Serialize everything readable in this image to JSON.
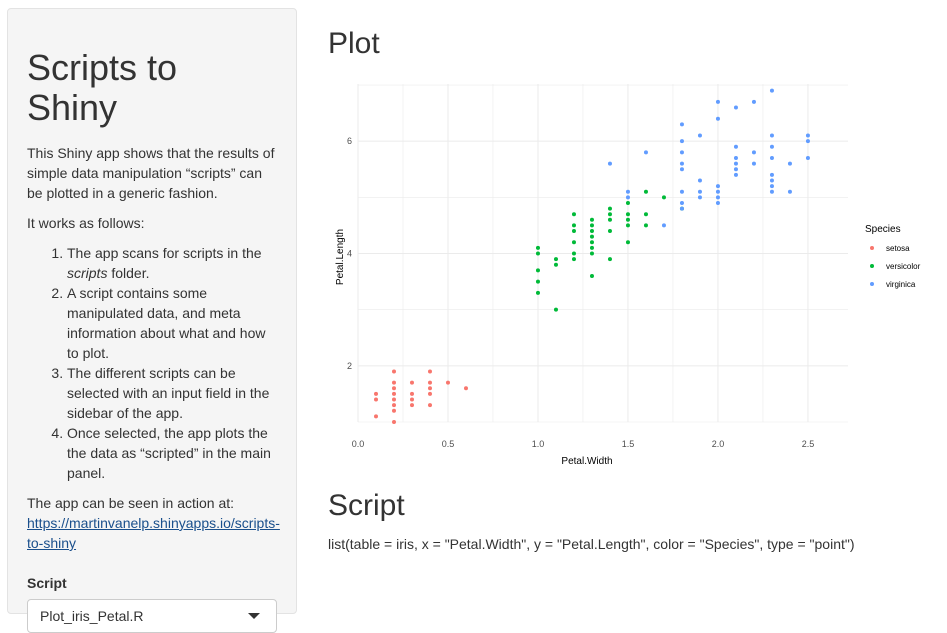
{
  "sidebar": {
    "title": "Scripts to Shiny",
    "intro": "This Shiny app shows that the results of simple data manipulation “scripts” can be plotted in a generic fashion.",
    "works_as_follows": "It works as follows:",
    "steps": [
      {
        "pre": "The app scans for scripts in the ",
        "em": "scripts",
        "post": " folder."
      },
      {
        "pre": "A script contains some manipulated data, and meta information about what and how to plot.",
        "em": "",
        "post": ""
      },
      {
        "pre": "The different scripts can be selected with an input field in the sidebar of the app.",
        "em": "",
        "post": ""
      },
      {
        "pre": "Once selected, the app plots the the data as “scripted” in the main panel.",
        "em": "",
        "post": ""
      }
    ],
    "action_text": "The app can be seen in action at:",
    "link_text": "https://martinvanelp.shinyapps.io/scripts-to-shiny",
    "script_label": "Script",
    "script_selected": "Plot_iris_Petal.R"
  },
  "main": {
    "plot_heading": "Plot",
    "script_heading": "Script",
    "script_text": "list(table = iris, x = \"Petal.Width\", y = \"Petal.Length\", color = \"Species\", type = \"point\")"
  },
  "colors": {
    "setosa": "#F8766D",
    "versicolor": "#00BA38",
    "virginica": "#619CFF",
    "grid": "#ebebeb"
  },
  "chart_data": {
    "type": "scatter",
    "xlabel": "Petal.Width",
    "ylabel": "Petal.Length",
    "xlim": [
      0.0,
      2.6
    ],
    "ylim": [
      1.0,
      7.0
    ],
    "x_ticks": [
      "0.0",
      "0.5",
      "1.0",
      "1.5",
      "2.0",
      "2.5"
    ],
    "y_ticks": [
      "2",
      "4",
      "6"
    ],
    "grid": true,
    "legend_title": "Species",
    "legend_position": "right",
    "series": [
      {
        "name": "setosa",
        "points": [
          [
            0.1,
            1.1
          ],
          [
            0.1,
            1.4
          ],
          [
            0.1,
            1.5
          ],
          [
            0.2,
            1.0
          ],
          [
            0.2,
            1.2
          ],
          [
            0.2,
            1.3
          ],
          [
            0.2,
            1.4
          ],
          [
            0.2,
            1.5
          ],
          [
            0.2,
            1.6
          ],
          [
            0.2,
            1.7
          ],
          [
            0.2,
            1.9
          ],
          [
            0.3,
            1.3
          ],
          [
            0.3,
            1.4
          ],
          [
            0.3,
            1.5
          ],
          [
            0.3,
            1.7
          ],
          [
            0.4,
            1.3
          ],
          [
            0.4,
            1.5
          ],
          [
            0.4,
            1.6
          ],
          [
            0.4,
            1.7
          ],
          [
            0.4,
            1.9
          ],
          [
            0.5,
            1.7
          ],
          [
            0.6,
            1.6
          ]
        ]
      },
      {
        "name": "versicolor",
        "points": [
          [
            1.0,
            3.3
          ],
          [
            1.0,
            3.5
          ],
          [
            1.0,
            3.7
          ],
          [
            1.0,
            4.0
          ],
          [
            1.0,
            4.1
          ],
          [
            1.1,
            3.0
          ],
          [
            1.1,
            3.8
          ],
          [
            1.1,
            3.9
          ],
          [
            1.2,
            3.9
          ],
          [
            1.2,
            4.0
          ],
          [
            1.2,
            4.2
          ],
          [
            1.2,
            4.4
          ],
          [
            1.2,
            4.5
          ],
          [
            1.2,
            4.7
          ],
          [
            1.3,
            3.6
          ],
          [
            1.3,
            4.0
          ],
          [
            1.3,
            4.1
          ],
          [
            1.3,
            4.2
          ],
          [
            1.3,
            4.3
          ],
          [
            1.3,
            4.4
          ],
          [
            1.3,
            4.5
          ],
          [
            1.3,
            4.6
          ],
          [
            1.4,
            3.9
          ],
          [
            1.4,
            4.4
          ],
          [
            1.4,
            4.6
          ],
          [
            1.4,
            4.7
          ],
          [
            1.4,
            4.8
          ],
          [
            1.5,
            4.2
          ],
          [
            1.5,
            4.5
          ],
          [
            1.5,
            4.6
          ],
          [
            1.5,
            4.7
          ],
          [
            1.5,
            4.9
          ],
          [
            1.6,
            4.5
          ],
          [
            1.6,
            4.7
          ],
          [
            1.6,
            5.1
          ],
          [
            1.7,
            5.0
          ],
          [
            1.8,
            4.8
          ]
        ]
      },
      {
        "name": "virginica",
        "points": [
          [
            1.4,
            5.6
          ],
          [
            1.5,
            5.0
          ],
          [
            1.5,
            5.1
          ],
          [
            1.6,
            5.8
          ],
          [
            1.7,
            4.5
          ],
          [
            1.8,
            4.8
          ],
          [
            1.8,
            4.9
          ],
          [
            1.8,
            5.1
          ],
          [
            1.8,
            5.5
          ],
          [
            1.8,
            5.6
          ],
          [
            1.8,
            5.8
          ],
          [
            1.8,
            6.0
          ],
          [
            1.8,
            6.3
          ],
          [
            1.9,
            5.0
          ],
          [
            1.9,
            5.1
          ],
          [
            1.9,
            5.3
          ],
          [
            1.9,
            6.1
          ],
          [
            2.0,
            4.9
          ],
          [
            2.0,
            5.0
          ],
          [
            2.0,
            5.1
          ],
          [
            2.0,
            5.2
          ],
          [
            2.0,
            6.4
          ],
          [
            2.0,
            6.7
          ],
          [
            2.1,
            5.4
          ],
          [
            2.1,
            5.5
          ],
          [
            2.1,
            5.6
          ],
          [
            2.1,
            5.7
          ],
          [
            2.1,
            5.9
          ],
          [
            2.1,
            6.6
          ],
          [
            2.2,
            5.6
          ],
          [
            2.2,
            5.8
          ],
          [
            2.2,
            6.7
          ],
          [
            2.3,
            5.1
          ],
          [
            2.3,
            5.2
          ],
          [
            2.3,
            5.3
          ],
          [
            2.3,
            5.4
          ],
          [
            2.3,
            5.7
          ],
          [
            2.3,
            5.9
          ],
          [
            2.3,
            6.1
          ],
          [
            2.3,
            6.9
          ],
          [
            2.4,
            5.1
          ],
          [
            2.4,
            5.6
          ],
          [
            2.5,
            5.7
          ],
          [
            2.5,
            6.0
          ],
          [
            2.5,
            6.1
          ]
        ]
      }
    ]
  }
}
